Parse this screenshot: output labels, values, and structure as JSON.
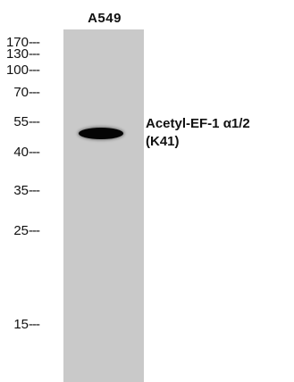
{
  "blot": {
    "lane_label": "A549",
    "markers": [
      "170",
      "130",
      "100",
      "70",
      "55",
      "40",
      "35",
      "25",
      "15"
    ],
    "tick_mark": "---",
    "band_target_line1": "Acetyl-EF-1 α1/2",
    "band_target_line2": "(K41)",
    "lane_color": "#c9c9c9",
    "band_color": "#050505"
  }
}
